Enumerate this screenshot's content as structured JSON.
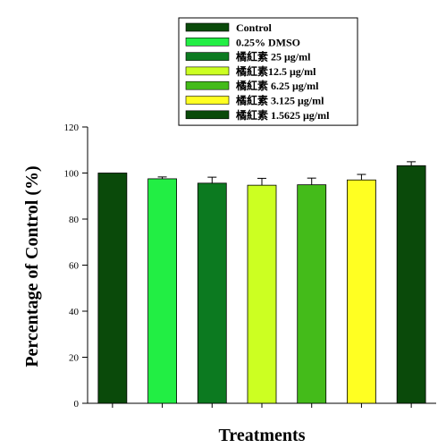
{
  "chart_data": {
    "type": "bar",
    "xlabel": "Treatments",
    "ylabel": "Percentage of Control (%)",
    "ylim": [
      0,
      120
    ],
    "yticks": [
      0,
      20,
      40,
      60,
      80,
      100,
      120
    ],
    "grid": false,
    "legend_position": "top-center",
    "series": [
      {
        "name": "Control",
        "value": 100,
        "error": 0,
        "color": "#0a4a0a"
      },
      {
        "name": "0.25% DMSO",
        "value": 97.5,
        "error": 0.8,
        "color": "#22ee44"
      },
      {
        "name": "橘紅素 25 μg/ml",
        "value": 95.6,
        "error": 2.6,
        "color": "#0c7a20"
      },
      {
        "name": "橘紅素12.5 μg/ml",
        "value": 94.7,
        "error": 3.0,
        "color": "#ccff22"
      },
      {
        "name": "橘紅素 6.25 μg/ml",
        "value": 94.9,
        "error": 2.9,
        "color": "#44bb1a"
      },
      {
        "name": "橘紅素 3.125 μg/ml",
        "value": 97.0,
        "error": 2.4,
        "color": "#ffff22"
      },
      {
        "name": "橘紅素 1.5625 μg/ml",
        "value": 103.2,
        "error": 1.7,
        "color": "#0a4a0a"
      }
    ]
  }
}
